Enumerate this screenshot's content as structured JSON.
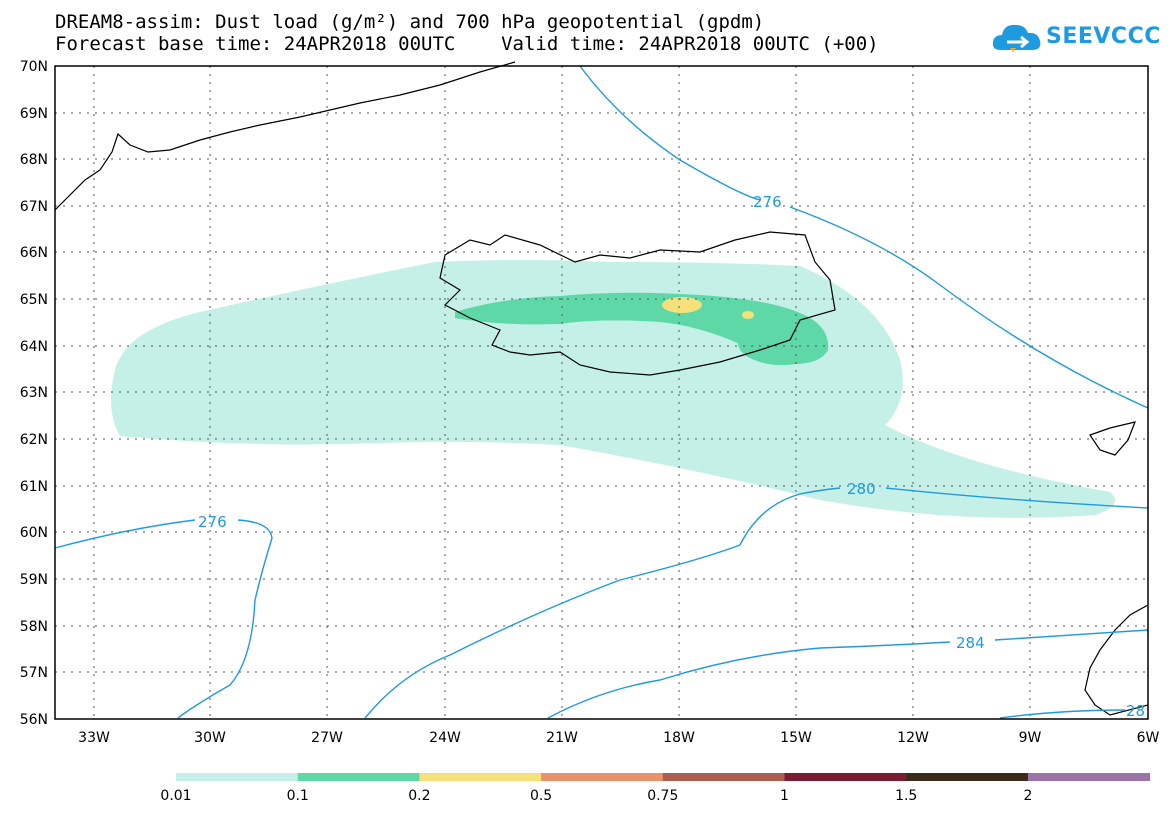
{
  "header": {
    "title_line1": "DREAM8-assim: Dust load (g/m²) and 700 hPa geopotential (gpdm)",
    "title_line2": "Forecast base time: 24APR2018 00UTC    Valid time: 24APR2018 00UTC (+00)"
  },
  "logo": {
    "text": "SEEVCCC",
    "icon": "cloud-logo-icon",
    "color": "#1e9be0"
  },
  "map": {
    "lat_labels": [
      "70N",
      "69N",
      "68N",
      "67N",
      "66N",
      "65N",
      "64N",
      "63N",
      "62N",
      "61N",
      "60N",
      "59N",
      "58N",
      "57N",
      "56N"
    ],
    "lon_labels": [
      "33W",
      "30W",
      "27W",
      "24W",
      "21W",
      "18W",
      "15W",
      "12W",
      "9W",
      "6W"
    ],
    "contour_labels": [
      "276",
      "276",
      "280",
      "284",
      "28"
    ],
    "contour_color": "#1e9be0",
    "coastline_color": "#000000"
  },
  "legend": {
    "colors": [
      "#c4f0e8",
      "#5fd8a8",
      "#f5e07a",
      "#e8916a",
      "#ae5e4f",
      "#7a1c33",
      "#3c2a1a",
      "#9a74a8"
    ],
    "labels": [
      "0.01",
      "0.1",
      "0.2",
      "0.5",
      "0.75",
      "1",
      "1.5",
      "2"
    ]
  }
}
